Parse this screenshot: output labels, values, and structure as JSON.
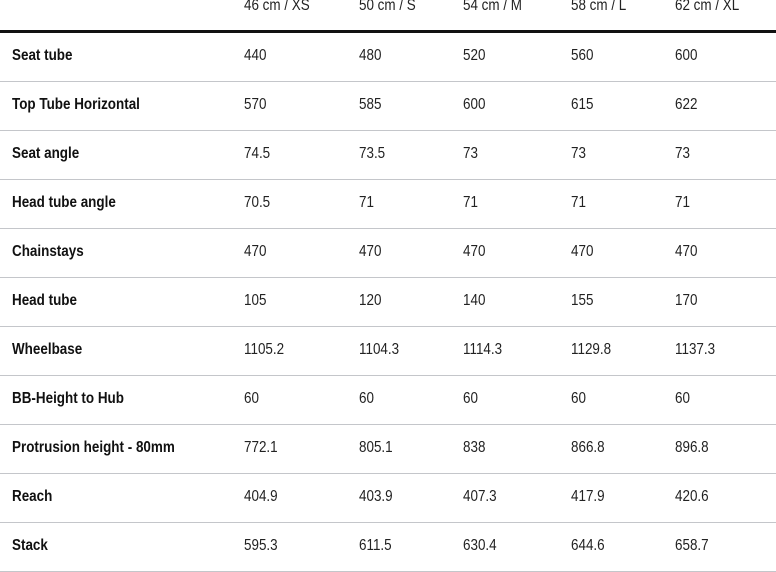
{
  "table": {
    "columns": [
      "46 cm / XS",
      "50 cm / S",
      "54 cm / M",
      "58 cm / L",
      "62 cm / XL"
    ],
    "rows": [
      {
        "label": "Seat tube",
        "values": [
          "440",
          "480",
          "520",
          "560",
          "600"
        ]
      },
      {
        "label": "Top Tube Horizontal",
        "values": [
          "570",
          "585",
          "600",
          "615",
          "622"
        ]
      },
      {
        "label": "Seat angle",
        "values": [
          "74.5",
          "73.5",
          "73",
          "73",
          "73"
        ]
      },
      {
        "label": "Head tube angle",
        "values": [
          "70.5",
          "71",
          "71",
          "71",
          "71"
        ]
      },
      {
        "label": "Chainstays",
        "values": [
          "470",
          "470",
          "470",
          "470",
          "470"
        ]
      },
      {
        "label": "Head tube",
        "values": [
          "105",
          "120",
          "140",
          "155",
          "170"
        ]
      },
      {
        "label": "Wheelbase",
        "values": [
          "1105.2",
          "1104.3",
          "1114.3",
          "1129.8",
          "1137.3"
        ]
      },
      {
        "label": "BB-Height to Hub",
        "values": [
          "60",
          "60",
          "60",
          "60",
          "60"
        ]
      },
      {
        "label": "Protrusion height - 80mm",
        "values": [
          "772.1",
          "805.1",
          "838",
          "866.8",
          "896.8"
        ]
      },
      {
        "label": "Reach",
        "values": [
          "404.9",
          "403.9",
          "407.3",
          "417.9",
          "420.6"
        ]
      },
      {
        "label": "Stack",
        "values": [
          "595.3",
          "611.5",
          "630.4",
          "644.6",
          "658.7"
        ]
      }
    ]
  }
}
